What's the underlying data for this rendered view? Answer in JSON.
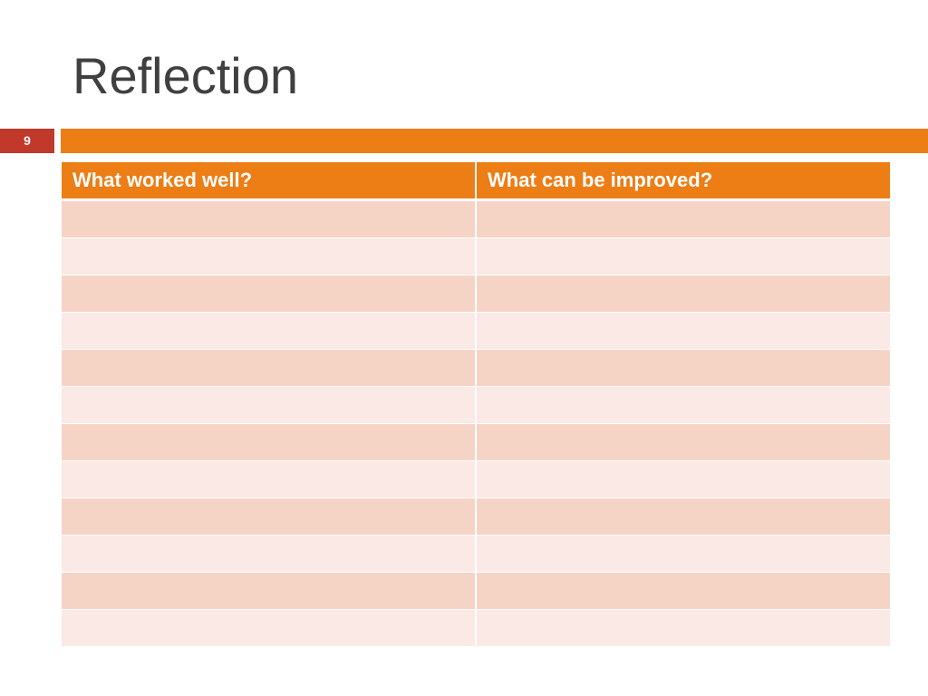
{
  "slide": {
    "title": "Reflection",
    "number": "9"
  },
  "table": {
    "headers": [
      "What worked well?",
      "What can be improved?"
    ],
    "rows": [
      [
        "",
        ""
      ],
      [
        "",
        ""
      ],
      [
        "",
        ""
      ],
      [
        "",
        ""
      ],
      [
        "",
        ""
      ],
      [
        "",
        ""
      ],
      [
        "",
        ""
      ],
      [
        "",
        ""
      ],
      [
        "",
        ""
      ],
      [
        "",
        ""
      ],
      [
        "",
        ""
      ],
      [
        "",
        ""
      ]
    ]
  },
  "colors": {
    "accent": "#ed7d15",
    "slide_number_background": "#c0392b",
    "row_band_dark": "#f5d4c6",
    "row_band_light": "#fae9e4"
  }
}
